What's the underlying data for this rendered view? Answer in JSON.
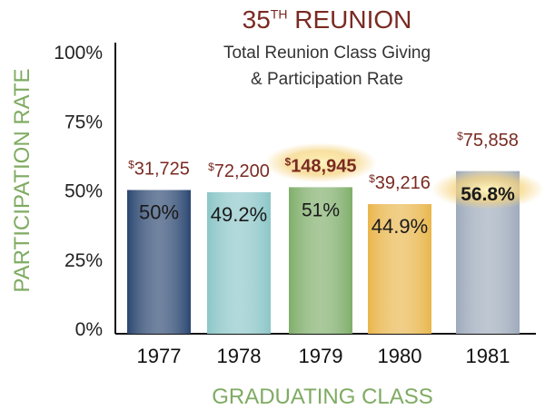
{
  "chart_data": {
    "type": "bar",
    "title": "35",
    "title_sup": "TH",
    "title_rest": " REUNION",
    "subtitle_lines": [
      "Total Reunion Class Giving",
      "& Participation Rate"
    ],
    "xlabel": "GRADUATING CLASS",
    "ylabel": "PARTICIPATION RATE",
    "ylim": [
      0,
      100
    ],
    "yticks": [
      "0%",
      "25%",
      "50%",
      "75%",
      "100%"
    ],
    "categories": [
      "1977",
      "1978",
      "1979",
      "1980",
      "1981"
    ],
    "values": [
      50,
      49.2,
      51,
      44.9,
      56.8
    ],
    "value_labels": [
      "50%",
      "49.2%",
      "51%",
      "44.9%",
      "56.8%"
    ],
    "giving_labels": [
      "31,725",
      "72,200",
      "148,945",
      "39,216",
      "75,858"
    ],
    "highlight": [
      false,
      false,
      true,
      false,
      true
    ],
    "colors": [
      "#2a4670",
      "#8cc6c8",
      "#7fae6a",
      "#e9b64c",
      "#9eaabb"
    ],
    "title_color": "#7a2a22",
    "axis_label_color": "#7fab62",
    "grid": false
  }
}
